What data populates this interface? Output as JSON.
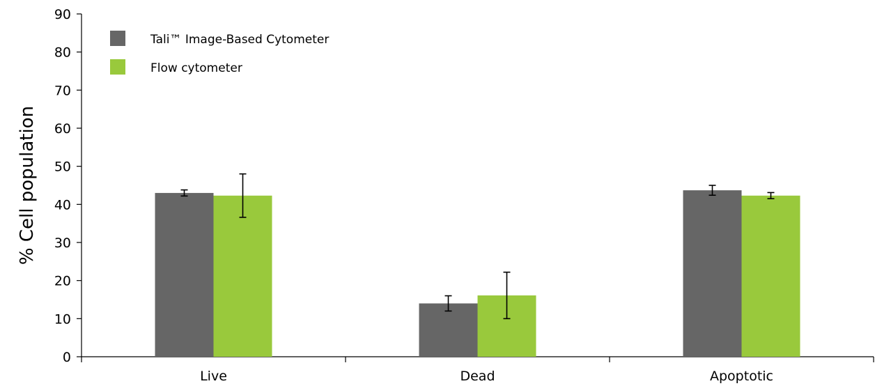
{
  "chart_data": {
    "type": "bar",
    "title": "",
    "xlabel": "",
    "ylabel": "% Cell population",
    "ylim": [
      0,
      90
    ],
    "yticks": [
      0,
      10,
      20,
      30,
      40,
      50,
      60,
      70,
      80,
      90
    ],
    "categories": [
      "Live",
      "Dead",
      "Apoptotic"
    ],
    "grid": false,
    "legend_position": "top-left",
    "series": [
      {
        "name": "Tali™ Image-Based Cytometer",
        "color": "#666666",
        "values": [
          43.0,
          14.0,
          43.7
        ],
        "errors": [
          0.8,
          2.0,
          1.3
        ]
      },
      {
        "name": "Flow cytometer",
        "color": "#99c93c",
        "values": [
          42.3,
          16.1,
          42.3
        ],
        "errors": [
          5.7,
          6.1,
          0.8
        ]
      }
    ]
  }
}
